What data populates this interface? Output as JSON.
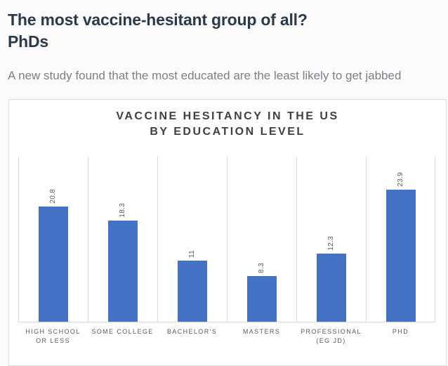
{
  "header": {
    "headline": "The most vaccine-hesitant group of all?\nPhDs",
    "subtitle": "A new study found that the most educated are the least likely to get jabbed"
  },
  "chart_data": {
    "type": "bar",
    "title": "VACCINE HESITANCY IN THE US\nBY EDUCATION LEVEL",
    "categories": [
      "HIGH SCHOOL\nOR LESS",
      "SOME COLLEGE",
      "BACHELOR'S",
      "MASTERS",
      "PROFESSIONAL\n(EG JD)",
      "PHD"
    ],
    "values": [
      20.8,
      18.3,
      11,
      8.3,
      12.3,
      23.9
    ],
    "value_labels": [
      "20.8",
      "18.3",
      "11",
      "8.3",
      "12.3",
      "23.9"
    ],
    "value_label_rotation": "vertical-bottom-to-top",
    "xlabel": "",
    "ylabel": "",
    "ylim": [
      0,
      30
    ],
    "grid": "vertical category separators only",
    "legend": "none"
  },
  "colors": {
    "bar": "#4472C4",
    "gridline": "#D9D9D9",
    "axis_label": "#595959",
    "chart_title": "#404040",
    "headline": "#2B3A4A",
    "subtitle": "#7B8087",
    "page_background": "#FBFBFB",
    "card_background": "#FFFFFF",
    "card_border": "#DFDFDF"
  }
}
